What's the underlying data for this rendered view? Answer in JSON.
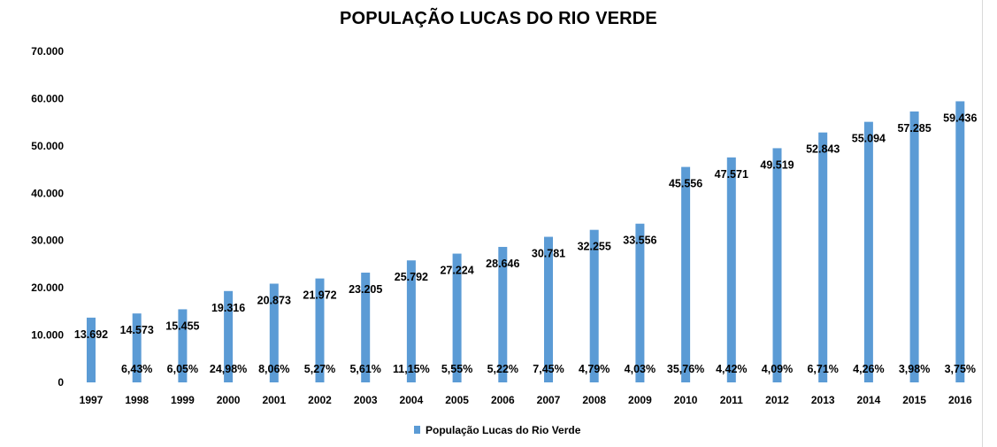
{
  "chart_data": {
    "type": "bar",
    "title": "POPULAÇÃO LUCAS DO RIO VERDE",
    "xlabel": "",
    "ylabel": "",
    "ylim": [
      0,
      70000
    ],
    "yticks": [
      "0",
      "10.000",
      "20.000",
      "30.000",
      "40.000",
      "50.000",
      "60.000",
      "70.000"
    ],
    "ytick_values": [
      0,
      10000,
      20000,
      30000,
      40000,
      50000,
      60000,
      70000
    ],
    "grid": false,
    "legend_position": "bottom",
    "bar_color": "#5b9bd5",
    "categories": [
      "1997",
      "1998",
      "1999",
      "2000",
      "2001",
      "2002",
      "2003",
      "2004",
      "2005",
      "2006",
      "2007",
      "2008",
      "2009",
      "2010",
      "2011",
      "2012",
      "2013",
      "2014",
      "2015",
      "2016"
    ],
    "series": [
      {
        "name": "População Lucas do Rio Verde",
        "values": [
          13692,
          14573,
          15455,
          19316,
          20873,
          21972,
          23205,
          25792,
          27224,
          28646,
          30781,
          32255,
          33556,
          45556,
          47571,
          49519,
          52843,
          55094,
          57285,
          59436
        ],
        "value_labels": [
          "13.692",
          "14.573",
          "15.455",
          "19.316",
          "20.873",
          "21.972",
          "23.205",
          "25.792",
          "27.224",
          "28.646",
          "30.781",
          "32.255",
          "33.556",
          "45.556",
          "47.571",
          "49.519",
          "52.843",
          "55.094",
          "57.285",
          "59.436"
        ]
      }
    ],
    "growth_labels": [
      "",
      "6,43%",
      "6,05%",
      "24,98%",
      "8,06%",
      "5,27%",
      "5,61%",
      "11,15%",
      "5,55%",
      "5,22%",
      "7,45%",
      "4,79%",
      "4,03%",
      "35,76%",
      "4,42%",
      "4,09%",
      "6,71%",
      "4,26%",
      "3,98%",
      "3,75%"
    ]
  }
}
